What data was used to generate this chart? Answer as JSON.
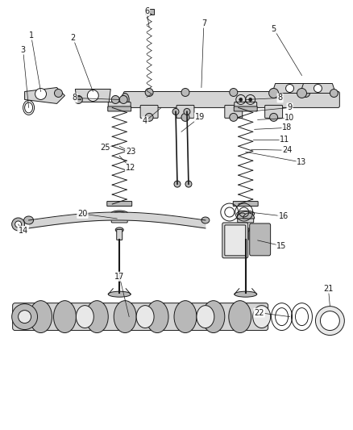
{
  "bg_color": "#ffffff",
  "line_color": "#1a1a1a",
  "label_color": "#1a1a1a",
  "figsize": [
    4.38,
    5.33
  ],
  "dpi": 100,
  "part_color": "#d4d4d4",
  "part_color2": "#b8b8b8",
  "part_color3": "#e8e8e8"
}
